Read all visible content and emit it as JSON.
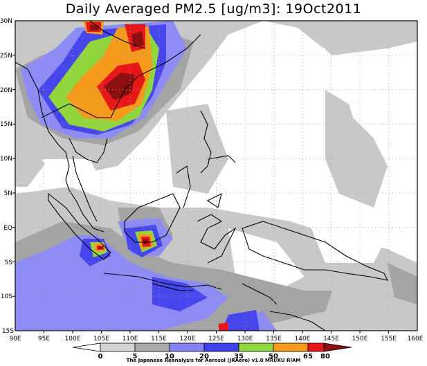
{
  "title": "Daily Averaged PM2.5 [ug/m3]: 19Oct2011",
  "credit": "The Japanese Reanalysis for Aerosol (JRAero) v1.0 MRI/KU RIAM",
  "map": {
    "lon_range": [
      90,
      160
    ],
    "lat_range": [
      -15,
      30
    ],
    "lon_labels": [
      "90E",
      "95E",
      "100E",
      "105E",
      "110E",
      "115E",
      "120E",
      "125E",
      "130E",
      "135E",
      "140E",
      "145E",
      "150E",
      "155E",
      "160E"
    ],
    "lat_labels": [
      "30N",
      "25N",
      "20N",
      "15N",
      "10N",
      "5N",
      "EQ",
      "5S",
      "10S",
      "15S"
    ],
    "grid": "dotted"
  },
  "colorbar": {
    "levels": [
      "0",
      "5",
      "10",
      "20",
      "35",
      "50",
      "65",
      "80"
    ],
    "colors": [
      "#ffffff",
      "#d4d4d4",
      "#a9a9a9",
      "#8484f8",
      "#4040f0",
      "#90d63c",
      "#f59a1a",
      "#e81818",
      "#8c0e0e"
    ]
  }
}
